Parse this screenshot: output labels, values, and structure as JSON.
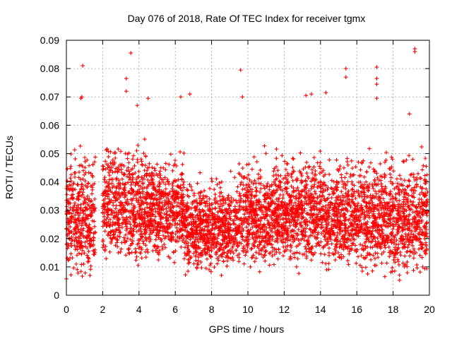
{
  "chart_data": {
    "type": "scatter",
    "title": "Day 076 of 2018, Rate Of TEC Index for receiver tgmx",
    "xlabel": "GPS time / hours",
    "ylabel": "ROTI / TECUs",
    "xlim": [
      0,
      20
    ],
    "ylim": [
      0,
      0.09
    ],
    "x_ticks": [
      "0",
      "2",
      "4",
      "6",
      "8",
      "10",
      "12",
      "14",
      "16",
      "18",
      "20"
    ],
    "y_ticks": [
      "0",
      "0.01",
      "0.02",
      "0.03",
      "0.04",
      "0.05",
      "0.06",
      "0.07",
      "0.08",
      "0.09"
    ],
    "grid": true,
    "marker": "plus",
    "series_color": "#ff0000",
    "envelope": [
      {
        "x_start": 0.0,
        "x_end": 1.6,
        "low": 0.004,
        "high": 0.055
      },
      {
        "x_start": 2.0,
        "x_end": 4.5,
        "low": 0.007,
        "high": 0.06
      },
      {
        "x_start": 4.5,
        "x_end": 6.5,
        "low": 0.01,
        "high": 0.055
      },
      {
        "x_start": 6.5,
        "x_end": 9.5,
        "low": 0.006,
        "high": 0.045
      },
      {
        "x_start": 9.5,
        "x_end": 12.0,
        "low": 0.006,
        "high": 0.055
      },
      {
        "x_start": 12.0,
        "x_end": 14.5,
        "low": 0.007,
        "high": 0.055
      },
      {
        "x_start": 14.5,
        "x_end": 17.5,
        "low": 0.006,
        "high": 0.055
      },
      {
        "x_start": 17.5,
        "x_end": 19.9,
        "low": 0.004,
        "high": 0.055
      }
    ],
    "outliers": [
      {
        "x": 0.9,
        "y": 0.081
      },
      {
        "x": 0.8,
        "y": 0.0695
      },
      {
        "x": 0.85,
        "y": 0.07
      },
      {
        "x": 3.3,
        "y": 0.0765
      },
      {
        "x": 3.3,
        "y": 0.072
      },
      {
        "x": 3.55,
        "y": 0.0855
      },
      {
        "x": 3.9,
        "y": 0.067
      },
      {
        "x": 4.5,
        "y": 0.0695
      },
      {
        "x": 6.3,
        "y": 0.07
      },
      {
        "x": 6.8,
        "y": 0.071
      },
      {
        "x": 9.6,
        "y": 0.0795
      },
      {
        "x": 9.7,
        "y": 0.07
      },
      {
        "x": 13.2,
        "y": 0.0705
      },
      {
        "x": 13.5,
        "y": 0.071
      },
      {
        "x": 14.3,
        "y": 0.0715
      },
      {
        "x": 15.4,
        "y": 0.08
      },
      {
        "x": 15.4,
        "y": 0.077
      },
      {
        "x": 17.1,
        "y": 0.0805
      },
      {
        "x": 17.1,
        "y": 0.0765
      },
      {
        "x": 17.1,
        "y": 0.0745
      },
      {
        "x": 17.1,
        "y": 0.0695
      },
      {
        "x": 19.2,
        "y": 0.087
      },
      {
        "x": 19.2,
        "y": 0.086
      },
      {
        "x": 18.9,
        "y": 0.064
      }
    ]
  }
}
